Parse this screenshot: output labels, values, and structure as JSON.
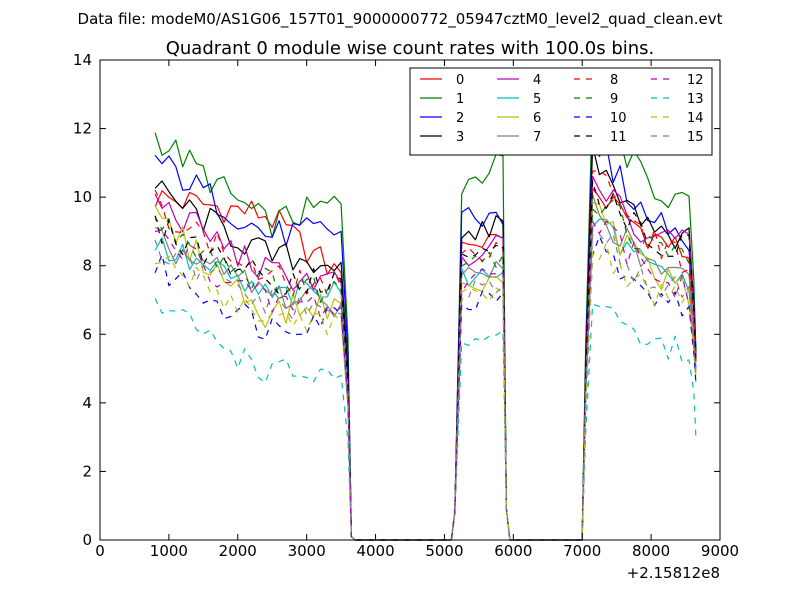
{
  "figure": {
    "suptitle": "Data file: modeM0/AS1G06_157T01_9000000772_05947cztM0_level2_quad_clean.evt"
  },
  "chart_data": {
    "type": "line",
    "title": "Quadrant 0 module wise count rates with 100.0s bins.",
    "xlabel": "",
    "ylabel": "",
    "xlim": [
      0,
      9000
    ],
    "ylim": [
      0,
      14
    ],
    "xticks": [
      "0",
      "1000",
      "2000",
      "3000",
      "4000",
      "5000",
      "6000",
      "7000",
      "8000",
      "9000"
    ],
    "yticks": [
      "0",
      "2",
      "4",
      "6",
      "8",
      "10",
      "12",
      "14"
    ],
    "x_offset_label": "+2.15812e8",
    "grid": false,
    "legend_position": "top-right",
    "legend_columns": 4,
    "x_segments": [
      [
        800,
        900,
        1000,
        1100,
        1200,
        1300,
        1400,
        1500,
        1600,
        1700,
        1800,
        1900,
        2000,
        2100,
        2200,
        2300,
        2400,
        2500,
        2600,
        2700,
        2800,
        2900,
        3000,
        3100,
        3200,
        3300,
        3400,
        3500,
        3600,
        3650
      ],
      [
        3700,
        4000,
        4500,
        5000,
        5100
      ],
      [
        5150,
        5250,
        5350,
        5450,
        5550,
        5650,
        5750,
        5850,
        5900
      ],
      [
        5950,
        6300,
        6700,
        7000
      ],
      [
        7000,
        7050,
        7150,
        7250,
        7350,
        7450,
        7550,
        7650,
        7750,
        7850,
        7950,
        8050,
        8150,
        8250,
        8350,
        8450,
        8550,
        8620,
        8650
      ]
    ],
    "series": [
      {
        "name": "0",
        "color": "#ff0000",
        "style": "solid",
        "levels": [
          10.0,
          9.5,
          7.8,
          0.0,
          0.0,
          8.5,
          8.8,
          0.0,
          0.0,
          10.2,
          9.0,
          8.2,
          5.5
        ]
      },
      {
        "name": "1",
        "color": "#008000",
        "style": "solid",
        "levels": [
          11.8,
          9.2,
          9.8,
          0.0,
          0.0,
          9.9,
          11.2,
          0.0,
          0.0,
          12.7,
          10.5,
          9.5,
          5.5
        ]
      },
      {
        "name": "2",
        "color": "#0000ff",
        "style": "solid",
        "levels": [
          11.1,
          8.9,
          9.0,
          0.0,
          0.0,
          9.7,
          9.2,
          0.0,
          0.0,
          11.7,
          9.5,
          8.8,
          5.5
        ]
      },
      {
        "name": "3",
        "color": "#000000",
        "style": "solid",
        "levels": [
          10.2,
          8.3,
          8.1,
          0.0,
          0.0,
          8.6,
          9.3,
          0.0,
          0.0,
          11.2,
          9.4,
          8.6,
          5.4
        ]
      },
      {
        "name": "4",
        "color": "#bf00bf",
        "style": "solid",
        "levels": [
          9.9,
          7.8,
          7.5,
          0.0,
          0.0,
          8.1,
          8.8,
          0.0,
          0.0,
          10.5,
          9.0,
          8.5,
          5.2
        ]
      },
      {
        "name": "5",
        "color": "#00bfbf",
        "style": "solid",
        "levels": [
          8.6,
          7.1,
          7.2,
          0.0,
          0.0,
          7.6,
          7.8,
          0.0,
          0.0,
          9.3,
          8.0,
          7.5,
          5.0
        ]
      },
      {
        "name": "6",
        "color": "#bfbf00",
        "style": "solid",
        "levels": [
          9.4,
          6.6,
          6.9,
          0.0,
          0.0,
          7.3,
          7.5,
          0.0,
          0.0,
          9.7,
          7.9,
          7.1,
          4.8
        ]
      },
      {
        "name": "7",
        "color": "#808080",
        "style": "solid",
        "levels": [
          8.7,
          7.2,
          6.9,
          0.0,
          0.0,
          7.7,
          7.9,
          0.0,
          0.0,
          9.8,
          8.1,
          7.4,
          5.0
        ]
      },
      {
        "name": "8",
        "color": "#ff0000",
        "style": "dashed",
        "levels": [
          9.8,
          7.6,
          7.4,
          0.0,
          0.0,
          8.2,
          8.5,
          0.0,
          0.0,
          10.7,
          8.9,
          8.0,
          5.2
        ]
      },
      {
        "name": "9",
        "color": "#008000",
        "style": "dashed",
        "levels": [
          9.3,
          7.5,
          7.3,
          0.0,
          0.0,
          7.9,
          8.3,
          0.0,
          0.0,
          10.1,
          8.6,
          8.2,
          5.1
        ]
      },
      {
        "name": "10",
        "color": "#0000ff",
        "style": "dashed",
        "levels": [
          8.0,
          6.2,
          6.6,
          0.0,
          0.0,
          6.7,
          7.2,
          0.0,
          0.0,
          8.6,
          7.2,
          6.8,
          4.6
        ]
      },
      {
        "name": "11",
        "color": "#000000",
        "style": "dashed",
        "levels": [
          9.1,
          7.6,
          7.6,
          0.0,
          0.0,
          8.0,
          8.6,
          0.0,
          0.0,
          10.4,
          8.9,
          8.4,
          5.3
        ]
      },
      {
        "name": "12",
        "color": "#bf00bf",
        "style": "dashed",
        "levels": [
          8.9,
          6.9,
          6.8,
          0.0,
          0.0,
          7.4,
          7.8,
          0.0,
          0.0,
          9.4,
          8.0,
          7.0,
          4.9
        ]
      },
      {
        "name": "13",
        "color": "#00bfbf",
        "style": "dashed",
        "levels": [
          6.9,
          4.9,
          4.8,
          0.0,
          0.0,
          5.6,
          6.1,
          0.0,
          0.0,
          7.0,
          5.8,
          5.4,
          3.0
        ]
      },
      {
        "name": "14",
        "color": "#bfbf00",
        "style": "dashed",
        "levels": [
          8.2,
          6.5,
          6.4,
          0.0,
          0.0,
          7.0,
          7.2,
          0.0,
          0.0,
          8.8,
          7.3,
          6.9,
          4.6
        ]
      },
      {
        "name": "15",
        "color": "#808080",
        "style": "dashed",
        "levels": [
          8.4,
          6.9,
          6.6,
          0.0,
          0.0,
          7.2,
          7.4,
          0.0,
          0.0,
          9.2,
          7.6,
          7.1,
          4.8
        ]
      }
    ]
  }
}
